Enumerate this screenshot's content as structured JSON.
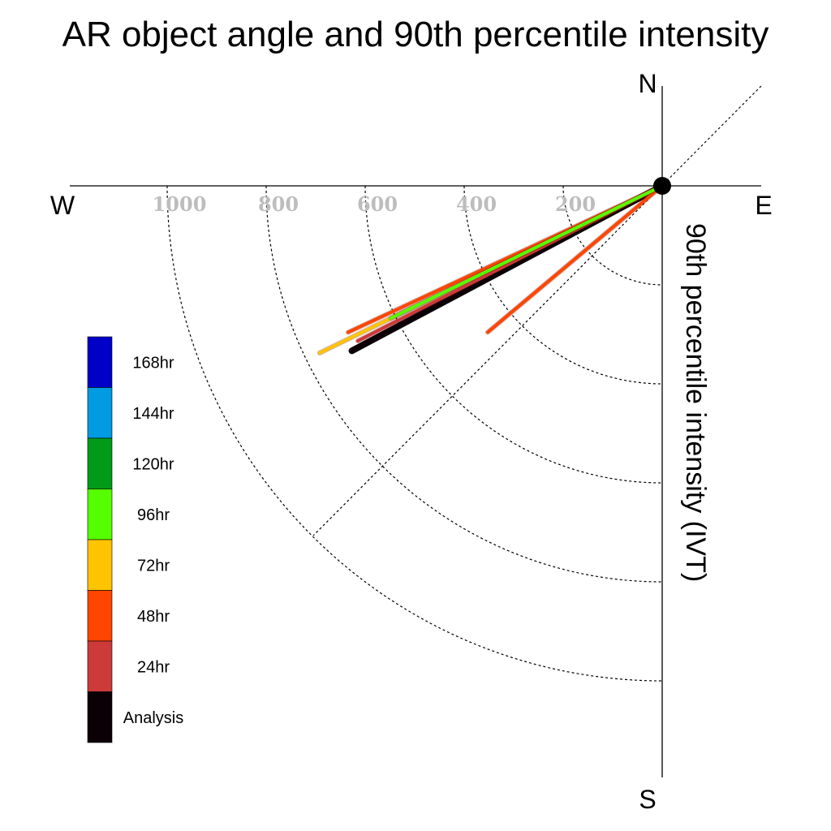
{
  "chart_data": {
    "type": "line",
    "title": "AR object angle and 90th percentile intensity",
    "ylabel": "90th percentile intensity (IVT)",
    "compass": {
      "north": "N",
      "south": "S",
      "west": "W",
      "east": "E"
    },
    "radial_ticks": [
      {
        "value": 200,
        "label": "200"
      },
      {
        "value": 400,
        "label": "400"
      },
      {
        "value": 600,
        "label": "600"
      },
      {
        "value": 800,
        "label": "800"
      },
      {
        "value": 1000,
        "label": "1000"
      }
    ],
    "radial_max": 1200,
    "grid": true,
    "legend_position": "left",
    "series": [
      {
        "name": "Analysis",
        "color": "#0a0005",
        "magnitude": 710,
        "direction_deg": 28
      },
      {
        "name": "24hr",
        "color": "#cc3a3a",
        "magnitude": 690,
        "direction_deg": 27
      },
      {
        "name": "48hr",
        "color": "#ff4500",
        "magnitude": 700,
        "direction_deg": 25
      },
      {
        "name": "48hr",
        "color": "#ff4500",
        "magnitude": 460,
        "direction_deg": 40
      },
      {
        "name": "72hr",
        "color": "#ffc400",
        "magnitude": 770,
        "direction_deg": 26
      },
      {
        "name": "96hr",
        "color": "#55ff00",
        "magnitude": 610,
        "direction_deg": 26
      }
    ],
    "legend": [
      {
        "label": "168hr",
        "color": "#0000c8"
      },
      {
        "label": "144hr",
        "color": "#009be1"
      },
      {
        "label": "120hr",
        "color": "#009b19"
      },
      {
        "label": "96hr",
        "color": "#55ff00"
      },
      {
        "label": "72hr",
        "color": "#ffc400"
      },
      {
        "label": "48hr",
        "color": "#ff4500"
      },
      {
        "label": "24hr",
        "color": "#cc3a3a"
      },
      {
        "label": "Analysis",
        "color": "#0a0005"
      }
    ]
  }
}
